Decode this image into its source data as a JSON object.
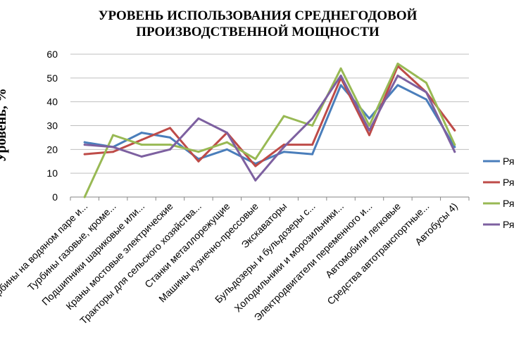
{
  "chart_data": {
    "type": "line",
    "title": [
      "УРОВЕНЬ ИСПОЛЬЗОВАНИЯ  СРЕДНЕГОДОВОЙ",
      "ПРОИЗВОДСТВЕННОЙ МОЩНОСТИ"
    ],
    "ylabel": "Уровень, %",
    "xlabel": "",
    "ylim": [
      0,
      60
    ],
    "yticks": [
      0,
      10,
      20,
      30,
      40,
      50,
      60
    ],
    "grid": true,
    "legend_position": "right",
    "categories": [
      "Турбины на водяном паре и...",
      "Турбины газовые, кроме...",
      "Подшипники шариковые или...",
      "Краны мостовые электрические",
      "Тракторы для сельского хозяйства...",
      "Станки металлорежущие",
      "Машины кузнечно-прессовые",
      "Экскаваторы",
      "Бульдозеры и бульдозеры с...",
      "Холодильники и морозильники...",
      "Электродвигатели переменного и...",
      "Автомобили легковые",
      "Средства автотранспортные...",
      "Автобусы 4)"
    ],
    "series": [
      {
        "name": "Ря",
        "color": "#4a7ebb",
        "values": [
          23,
          21,
          27,
          25,
          16,
          20,
          14,
          19,
          18,
          47,
          33,
          47,
          41,
          21
        ]
      },
      {
        "name": "Ря",
        "color": "#be4b48",
        "values": [
          18,
          19,
          24,
          29,
          15,
          27,
          13,
          22,
          22,
          50,
          26,
          55,
          44,
          28
        ]
      },
      {
        "name": "Ря",
        "color": "#98b954",
        "values": [
          0,
          26,
          22,
          22,
          19,
          23,
          16,
          34,
          30,
          54,
          30,
          56,
          48,
          22
        ]
      },
      {
        "name": "Ря",
        "color": "#7d60a0",
        "values": [
          22,
          21,
          17,
          20,
          33,
          27,
          7,
          21,
          33,
          51,
          28,
          51,
          44,
          19
        ]
      }
    ]
  }
}
